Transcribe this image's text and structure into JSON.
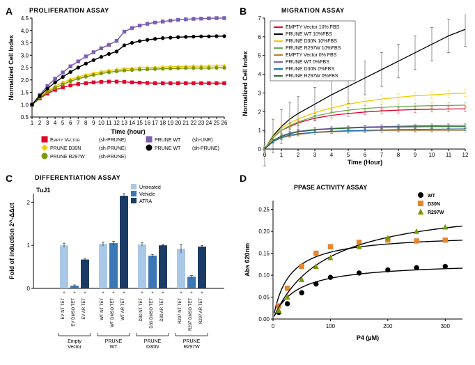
{
  "panelA": {
    "label": "A",
    "title": "PROLIFERATION ASSAY",
    "type": "line",
    "xlabel": "Time (hour)",
    "ylabel": "Normalized Cell Index",
    "xlim": [
      1,
      26
    ],
    "ylim": [
      0.5,
      4.5
    ],
    "xtick_step": 1,
    "ytick_step": 0.5,
    "background_color": "#ffffff",
    "grid_color": "none",
    "axis_color": "#000000",
    "title_fontsize": 9,
    "label_fontsize": 9,
    "legend": [
      {
        "label": "Empty Vector",
        "sh": "(sh-PRUNE)",
        "color": "#e4002b",
        "marker": "square"
      },
      {
        "label": "PRUNE D30N",
        "sh": "(sh-PRUNE)",
        "color": "#f2c800",
        "marker": "diamond"
      },
      {
        "label": "PRUNE R297W",
        "sh": "(sh-PRUNE)",
        "color": "#7a9a01",
        "marker": "circle"
      },
      {
        "label": "PRUNE WT",
        "sh": "(sh-UNR)",
        "color": "#7b5fb2",
        "marker": "square"
      },
      {
        "label": "PRUNE WT",
        "sh": "(sh-PRUNE)",
        "color": "#000000",
        "marker": "circle"
      }
    ],
    "series": [
      {
        "color": "#e4002b",
        "marker": "square",
        "x": [
          1,
          2,
          3,
          4,
          5,
          6,
          7,
          8,
          9,
          10,
          11,
          12,
          13,
          14,
          15,
          16,
          17,
          18,
          19,
          20,
          21,
          22,
          23,
          24,
          25,
          26
        ],
        "y": [
          1.0,
          1.25,
          1.45,
          1.6,
          1.7,
          1.78,
          1.83,
          1.87,
          1.9,
          1.92,
          1.93,
          1.93,
          1.92,
          1.9,
          1.89,
          1.88,
          1.87,
          1.87,
          1.87,
          1.87,
          1.87,
          1.87,
          1.87,
          1.87,
          1.87,
          1.87
        ]
      },
      {
        "color": "#f2c800",
        "marker": "diamond",
        "x": [
          1,
          2,
          3,
          4,
          5,
          6,
          7,
          8,
          9,
          10,
          11,
          12,
          13,
          14,
          15,
          16,
          17,
          18,
          19,
          20,
          21,
          22,
          23,
          24,
          25,
          26
        ],
        "y": [
          1.0,
          1.3,
          1.55,
          1.75,
          1.9,
          2.02,
          2.12,
          2.2,
          2.27,
          2.33,
          2.38,
          2.42,
          2.45,
          2.47,
          2.49,
          2.5,
          2.51,
          2.52,
          2.53,
          2.54,
          2.55,
          2.56,
          2.56,
          2.56,
          2.57,
          2.57
        ]
      },
      {
        "color": "#7a9a01",
        "marker": "circle",
        "x": [
          1,
          2,
          3,
          4,
          5,
          6,
          7,
          8,
          9,
          10,
          11,
          12,
          13,
          14,
          15,
          16,
          17,
          18,
          19,
          20,
          21,
          22,
          23,
          24,
          25,
          26
        ],
        "y": [
          1.0,
          1.28,
          1.5,
          1.68,
          1.82,
          1.95,
          2.05,
          2.13,
          2.2,
          2.26,
          2.31,
          2.35,
          2.38,
          2.4,
          2.42,
          2.43,
          2.44,
          2.45,
          2.46,
          2.47,
          2.48,
          2.48,
          2.48,
          2.48,
          2.49,
          2.49
        ]
      },
      {
        "color": "#7b5fb2",
        "marker": "square",
        "x": [
          1,
          2,
          3,
          4,
          5,
          6,
          7,
          8,
          9,
          10,
          11,
          12,
          13,
          14,
          15,
          16,
          17,
          18,
          19,
          20,
          21,
          22,
          23,
          24,
          25,
          26
        ],
        "y": [
          1.0,
          1.4,
          1.75,
          2.05,
          2.3,
          2.55,
          2.75,
          2.95,
          3.12,
          3.28,
          3.42,
          3.58,
          3.95,
          4.1,
          4.2,
          4.27,
          4.32,
          4.36,
          4.4,
          4.43,
          4.45,
          4.47,
          4.48,
          4.49,
          4.5,
          4.5
        ]
      },
      {
        "color": "#000000",
        "marker": "circle",
        "x": [
          1,
          2,
          3,
          4,
          5,
          6,
          7,
          8,
          9,
          10,
          11,
          12,
          13,
          14,
          15,
          16,
          17,
          18,
          19,
          20,
          21,
          22,
          23,
          24,
          25,
          26
        ],
        "y": [
          1.0,
          1.35,
          1.65,
          1.9,
          2.12,
          2.32,
          2.5,
          2.66,
          2.8,
          2.93,
          3.05,
          3.15,
          3.4,
          3.5,
          3.57,
          3.62,
          3.66,
          3.69,
          3.71,
          3.73,
          3.74,
          3.75,
          3.76,
          3.76,
          3.77,
          3.77
        ]
      }
    ]
  },
  "panelB": {
    "label": "B",
    "title": "MIGRATION ASSAY",
    "type": "line",
    "xlabel": "Time (Hour)",
    "ylabel": "Normalized Cell Index",
    "xlim": [
      0,
      12
    ],
    "ylim": [
      0,
      7
    ],
    "xtick_step": 1,
    "ytick_step": 1,
    "background_color": "#ffffff",
    "axis_color": "#000000",
    "title_fontsize": 9,
    "label_fontsize": 9,
    "legend": [
      {
        "label": "EMPTY Vector 10% FBS",
        "color": "#e4002b"
      },
      {
        "label": "PRUNE WT 10%FBS",
        "color": "#000000"
      },
      {
        "label": "PRUNE D30N 10%FBS",
        "color": "#f2c800"
      },
      {
        "label": "PRUNE R297W 10%FBS",
        "color": "#6aa84f"
      },
      {
        "label": "EMPTY Vector 0% FBS",
        "color": "#b97d3a"
      },
      {
        "label": "PRUNE WT 0%FBS",
        "color": "#7b5fb2"
      },
      {
        "label": "PRUNE D30N 0%FBS",
        "color": "#1f6fb2"
      },
      {
        "label": "PRUNE R297W 0%FBS",
        "color": "#2d6a2d"
      }
    ],
    "series": [
      {
        "color": "#e4002b",
        "x": [
          0,
          0.5,
          1,
          1.5,
          2,
          3,
          4,
          5,
          6,
          7,
          8,
          9,
          10,
          11,
          12
        ],
        "y": [
          0,
          0.6,
          1.0,
          1.2,
          1.4,
          1.65,
          1.8,
          1.9,
          1.98,
          2.04,
          2.08,
          2.11,
          2.13,
          2.14,
          2.15
        ],
        "err": 0.15
      },
      {
        "color": "#000000",
        "x": [
          0,
          0.5,
          1,
          1.5,
          2,
          3,
          4,
          5,
          6,
          7,
          8,
          9,
          10,
          11,
          12
        ],
        "y": [
          0,
          0.7,
          1.2,
          1.6,
          1.9,
          2.4,
          2.9,
          3.35,
          3.8,
          4.25,
          4.7,
          5.15,
          5.6,
          6.05,
          6.4
        ],
        "err": 0.9
      },
      {
        "color": "#f2c800",
        "x": [
          0,
          0.5,
          1,
          1.5,
          2,
          3,
          4,
          5,
          6,
          7,
          8,
          9,
          10,
          11,
          12
        ],
        "y": [
          0,
          0.65,
          1.1,
          1.4,
          1.6,
          1.95,
          2.2,
          2.4,
          2.55,
          2.67,
          2.77,
          2.85,
          2.9,
          2.95,
          3.0
        ],
        "err": 0.2
      },
      {
        "color": "#6aa84f",
        "x": [
          0,
          0.5,
          1,
          1.5,
          2,
          3,
          4,
          5,
          6,
          7,
          8,
          9,
          10,
          11,
          12
        ],
        "y": [
          0,
          0.6,
          1.0,
          1.25,
          1.45,
          1.75,
          1.95,
          2.08,
          2.17,
          2.23,
          2.27,
          2.3,
          2.32,
          2.33,
          2.35
        ],
        "err": 0.15
      },
      {
        "color": "#b97d3a",
        "x": [
          0,
          0.5,
          1,
          1.5,
          2,
          3,
          4,
          5,
          6,
          7,
          8,
          9,
          10,
          11,
          12
        ],
        "y": [
          0,
          0.4,
          0.6,
          0.7,
          0.78,
          0.88,
          0.92,
          0.95,
          0.97,
          0.99,
          1.0,
          1.0,
          1.0,
          1.0,
          1.0
        ],
        "err": 0.1
      },
      {
        "color": "#7b5fb2",
        "x": [
          0,
          0.5,
          1,
          1.5,
          2,
          3,
          4,
          5,
          6,
          7,
          8,
          9,
          10,
          11,
          12
        ],
        "y": [
          0,
          0.45,
          0.7,
          0.85,
          0.95,
          1.05,
          1.1,
          1.15,
          1.18,
          1.2,
          1.22,
          1.24,
          1.25,
          1.26,
          1.27
        ],
        "err": 0.1
      },
      {
        "color": "#1f6fb2",
        "x": [
          0,
          0.5,
          1,
          1.5,
          2,
          3,
          4,
          5,
          6,
          7,
          8,
          9,
          10,
          11,
          12
        ],
        "y": [
          0,
          0.4,
          0.62,
          0.75,
          0.82,
          0.9,
          0.95,
          0.98,
          1.0,
          1.02,
          1.04,
          1.05,
          1.06,
          1.07,
          1.08
        ],
        "err": 0.1
      },
      {
        "color": "#2d6a2d",
        "x": [
          0,
          0.5,
          1,
          1.5,
          2,
          3,
          4,
          5,
          6,
          7,
          8,
          9,
          10,
          11,
          12
        ],
        "y": [
          0,
          0.45,
          0.68,
          0.82,
          0.92,
          1.02,
          1.08,
          1.12,
          1.15,
          1.17,
          1.18,
          1.19,
          1.2,
          1.2,
          1.2
        ],
        "err": 0.1
      }
    ]
  },
  "panelC": {
    "label": "C",
    "title": "DIFFERENTIATION ASSAY",
    "type": "bar",
    "marker": "TuJ1",
    "ylabel": "Fold of induction 2^-ΔΔct",
    "ylim": [
      0,
      2.2
    ],
    "ytick_step": 1,
    "background_color": "#ffffff",
    "axis_color": "#000000",
    "title_fontsize": 9,
    "label_fontsize": 8,
    "legend": [
      {
        "label": "Untreated",
        "color": "#a9c8e8"
      },
      {
        "label": "Vehicle",
        "color": "#3b76b5"
      },
      {
        "label": "ATRA",
        "color": "#1c3a66"
      }
    ],
    "groups": [
      {
        "group": "Empty Vector",
        "cols": [
          {
            "tick": "EV NT TET",
            "val": 1.0,
            "err": 0.05,
            "color": "#a9c8e8"
          },
          {
            "tick": "EV DMSO TET",
            "val": 0.06,
            "err": 0.02,
            "color": "#3b76b5"
          },
          {
            "tick": "EV AR TET",
            "val": 0.67,
            "err": 0.03,
            "color": "#1c3a66"
          }
        ]
      },
      {
        "group": "PRUNE WT",
        "cols": [
          {
            "tick": "WT NT TET",
            "val": 1.03,
            "err": 0.05,
            "color": "#a9c8e8"
          },
          {
            "tick": "WT DMSO TET",
            "val": 1.05,
            "err": 0.04,
            "color": "#3b76b5"
          },
          {
            "tick": "WT AR TET",
            "val": 2.15,
            "err": 0.05,
            "color": "#1c3a66"
          }
        ]
      },
      {
        "group": "PRUNE D30N",
        "cols": [
          {
            "tick": "D30 NT TET",
            "val": 1.02,
            "err": 0.04,
            "color": "#a9c8e8"
          },
          {
            "tick": "D30 DMSO TET",
            "val": 0.76,
            "err": 0.03,
            "color": "#3b76b5"
          },
          {
            "tick": "D30 AR TET",
            "val": 1.0,
            "err": 0.03,
            "color": "#1c3a66"
          }
        ]
      },
      {
        "group": "PRUNE R297W",
        "cols": [
          {
            "tick": "R297 NT TET",
            "val": 0.92,
            "err": 0.1,
            "color": "#a9c8e8"
          },
          {
            "tick": "R297 DMSO TET",
            "val": 0.27,
            "err": 0.03,
            "color": "#3b76b5"
          },
          {
            "tick": "R297 AR TET",
            "val": 0.97,
            "err": 0.03,
            "color": "#1c3a66"
          }
        ]
      }
    ]
  },
  "panelD": {
    "label": "D",
    "title": "PPASE ACTIVITY ASSAY",
    "type": "scatter",
    "xlabel": "P4 (µM)",
    "ylabel": "Abs 620nm",
    "xlim": [
      0,
      330
    ],
    "ylim": [
      0,
      0.27
    ],
    "xtick_step": 100,
    "ytick_step": 0.05,
    "background_color": "#ffffff",
    "axis_color": "#000000",
    "title_fontsize": 9,
    "label_fontsize": 9,
    "legend": [
      {
        "label": "WT",
        "color": "#000000",
        "marker": "circle"
      },
      {
        "label": "D30N",
        "color": "#e8832e",
        "marker": "square"
      },
      {
        "label": "R297W",
        "color": "#7a9a01",
        "marker": "triangle"
      }
    ],
    "series": [
      {
        "color": "#000000",
        "marker": "circle",
        "x": [
          10,
          25,
          50,
          75,
          100,
          150,
          200,
          250,
          300
        ],
        "y": [
          0.015,
          0.035,
          0.06,
          0.08,
          0.095,
          0.105,
          0.112,
          0.117,
          0.12
        ],
        "fit": {
          "vmax": 0.13,
          "km": 40
        }
      },
      {
        "color": "#e8832e",
        "marker": "square",
        "x": [
          10,
          25,
          50,
          75,
          100,
          150,
          200,
          250,
          300
        ],
        "y": [
          0.03,
          0.07,
          0.12,
          0.15,
          0.165,
          0.175,
          0.18,
          0.178,
          0.18
        ],
        "fit": {
          "vmax": 0.195,
          "km": 28
        }
      },
      {
        "color": "#7a9a01",
        "marker": "triangle",
        "x": [
          10,
          25,
          50,
          75,
          100,
          150,
          200,
          250,
          300
        ],
        "y": [
          0.02,
          0.05,
          0.09,
          0.12,
          0.14,
          0.165,
          0.185,
          0.2,
          0.21
        ],
        "fit": {
          "vmax": 0.27,
          "km": 90
        }
      }
    ]
  }
}
